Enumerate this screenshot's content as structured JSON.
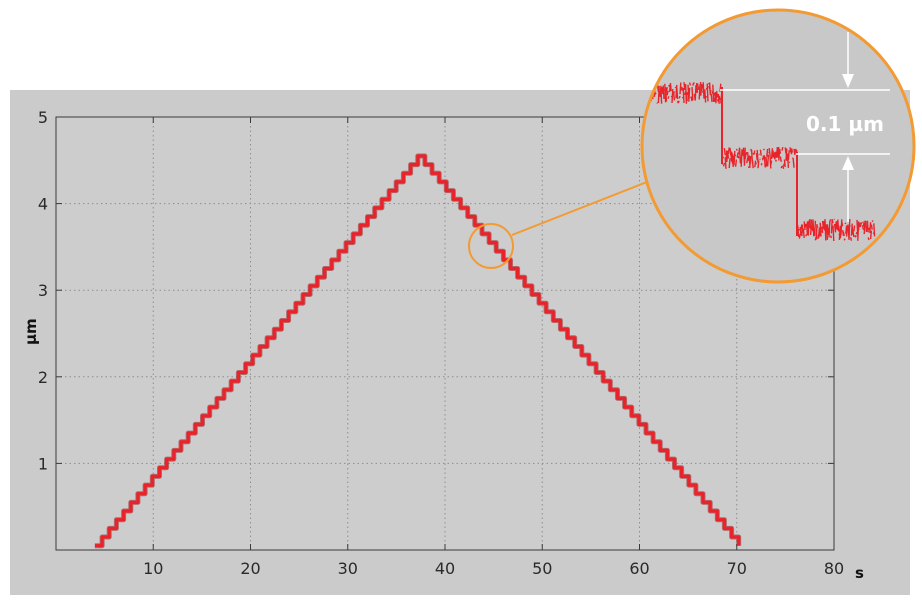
{
  "chart_data": {
    "type": "line",
    "xlabel": "s",
    "ylabel": "µm",
    "xlim": [
      0,
      80
    ],
    "ylim": [
      0,
      5
    ],
    "x_ticks": [
      10,
      20,
      30,
      40,
      50,
      60,
      70,
      80
    ],
    "y_ticks": [
      1,
      2,
      3,
      4,
      5
    ],
    "x_tick_labels": [
      "10",
      "20",
      "30",
      "40",
      "50",
      "60",
      "70",
      "80"
    ],
    "y_tick_labels": [
      "1",
      "2",
      "3",
      "4",
      "5"
    ],
    "grid": true,
    "step_size": 0.1,
    "series": [
      {
        "x": [
          4,
          37.2,
          70.2
        ],
        "y": [
          0.05,
          4.55,
          0.05
        ]
      }
    ],
    "annotations": [
      {
        "text": "0.1 µm",
        "x": 45,
        "y": 3.65
      }
    ]
  },
  "colors": {
    "plot_background": "#cbcbcb",
    "series": "#e8242a",
    "highlight_circle": "#f39a32",
    "grid": "#8e8e8e"
  }
}
